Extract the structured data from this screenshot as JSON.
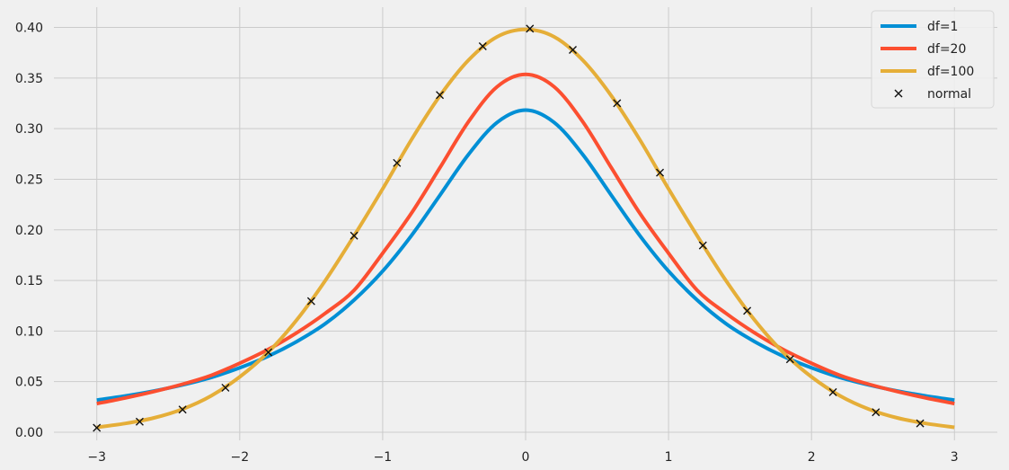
{
  "chart_data": {
    "type": "line",
    "title": "",
    "xlabel": "",
    "ylabel": "",
    "xlim": [
      -3.3,
      3.3
    ],
    "ylim": [
      -0.008,
      0.42
    ],
    "grid": true,
    "legend_position": "top-right",
    "x_ticks": [
      -3,
      -2,
      -1,
      0,
      1,
      2,
      3
    ],
    "x_tick_labels": [
      "−3",
      "−2",
      "−1",
      "0",
      "1",
      "2",
      "3"
    ],
    "y_ticks": [
      0.0,
      0.05,
      0.1,
      0.15,
      0.2,
      0.25,
      0.3,
      0.35,
      0.4
    ],
    "y_tick_labels": [
      "0.00",
      "0.05",
      "0.10",
      "0.15",
      "0.20",
      "0.25",
      "0.30",
      "0.35",
      "0.40"
    ],
    "series": [
      {
        "name": "df=1",
        "style": "line",
        "color": "#008fd5",
        "x": [
          -3.0,
          -2.8,
          -2.6,
          -2.4,
          -2.2,
          -2.0,
          -1.8,
          -1.6,
          -1.4,
          -1.2,
          -1.0,
          -0.8,
          -0.6,
          -0.4,
          -0.2,
          0.0,
          0.2,
          0.4,
          0.6,
          0.8,
          1.0,
          1.2,
          1.4,
          1.6,
          1.8,
          2.0,
          2.2,
          2.4,
          2.6,
          2.8,
          3.0
        ],
        "y": [
          0.0318,
          0.0359,
          0.0408,
          0.0468,
          0.0541,
          0.0637,
          0.0752,
          0.0897,
          0.1074,
          0.1306,
          0.1592,
          0.1941,
          0.2341,
          0.2744,
          0.3061,
          0.3183,
          0.3061,
          0.2744,
          0.2341,
          0.1941,
          0.1592,
          0.1306,
          0.1074,
          0.0897,
          0.0752,
          0.0637,
          0.0541,
          0.0468,
          0.0408,
          0.0359,
          0.0318
        ]
      },
      {
        "name": "df=20",
        "style": "line",
        "color": "#fc4f30",
        "x": [
          -3.0,
          -2.8,
          -2.6,
          -2.4,
          -2.2,
          -2.0,
          -1.8,
          -1.6,
          -1.4,
          -1.2,
          -1.0,
          -0.8,
          -0.6,
          -0.4,
          -0.2,
          0.0,
          0.2,
          0.4,
          0.6,
          0.8,
          1.0,
          1.2,
          1.4,
          1.6,
          1.8,
          2.0,
          2.2,
          2.4,
          2.6,
          2.8,
          3.0
        ],
        "y": [
          0.0283,
          0.0339,
          0.0402,
          0.0475,
          0.0562,
          0.0682,
          0.0819,
          0.0984,
          0.1177,
          0.1403,
          0.1769,
          0.2162,
          0.2613,
          0.3068,
          0.3413,
          0.3536,
          0.3413,
          0.3068,
          0.2613,
          0.2162,
          0.1769,
          0.1403,
          0.1177,
          0.0984,
          0.0819,
          0.0682,
          0.0562,
          0.0475,
          0.0402,
          0.0339,
          0.0283
        ]
      },
      {
        "name": "df=100",
        "style": "line",
        "color": "#e5ae38",
        "x": [
          -3.0,
          -2.8,
          -2.6,
          -2.4,
          -2.2,
          -2.0,
          -1.8,
          -1.6,
          -1.4,
          -1.2,
          -1.0,
          -0.8,
          -0.6,
          -0.4,
          -0.2,
          0.0,
          0.2,
          0.4,
          0.6,
          0.8,
          1.0,
          1.2,
          1.4,
          1.6,
          1.8,
          2.0,
          2.2,
          2.4,
          2.6,
          2.8,
          3.0
        ],
        "y": [
          0.0049,
          0.0087,
          0.0142,
          0.0229,
          0.036,
          0.0547,
          0.0792,
          0.1112,
          0.1502,
          0.1942,
          0.2405,
          0.2888,
          0.3324,
          0.3676,
          0.3907,
          0.398,
          0.3907,
          0.3676,
          0.3324,
          0.2888,
          0.2405,
          0.1942,
          0.1502,
          0.1112,
          0.0792,
          0.0547,
          0.036,
          0.0229,
          0.0142,
          0.0087,
          0.0049
        ]
      },
      {
        "name": "normal",
        "style": "scatter",
        "marker": "x",
        "color": "#111111",
        "x": [
          -3.0,
          -2.7,
          -2.4,
          -2.1,
          -1.8,
          -1.5,
          -1.2,
          -0.9,
          -0.6,
          -0.3,
          0.03,
          0.33,
          0.64,
          0.94,
          1.24,
          1.55,
          1.85,
          2.15,
          2.45,
          2.76
        ],
        "y": [
          0.0044,
          0.0104,
          0.0224,
          0.044,
          0.079,
          0.1295,
          0.1942,
          0.2661,
          0.3332,
          0.3814,
          0.3988,
          0.3778,
          0.3251,
          0.2565,
          0.1846,
          0.12,
          0.0721,
          0.0396,
          0.0198,
          0.0088
        ]
      }
    ]
  }
}
